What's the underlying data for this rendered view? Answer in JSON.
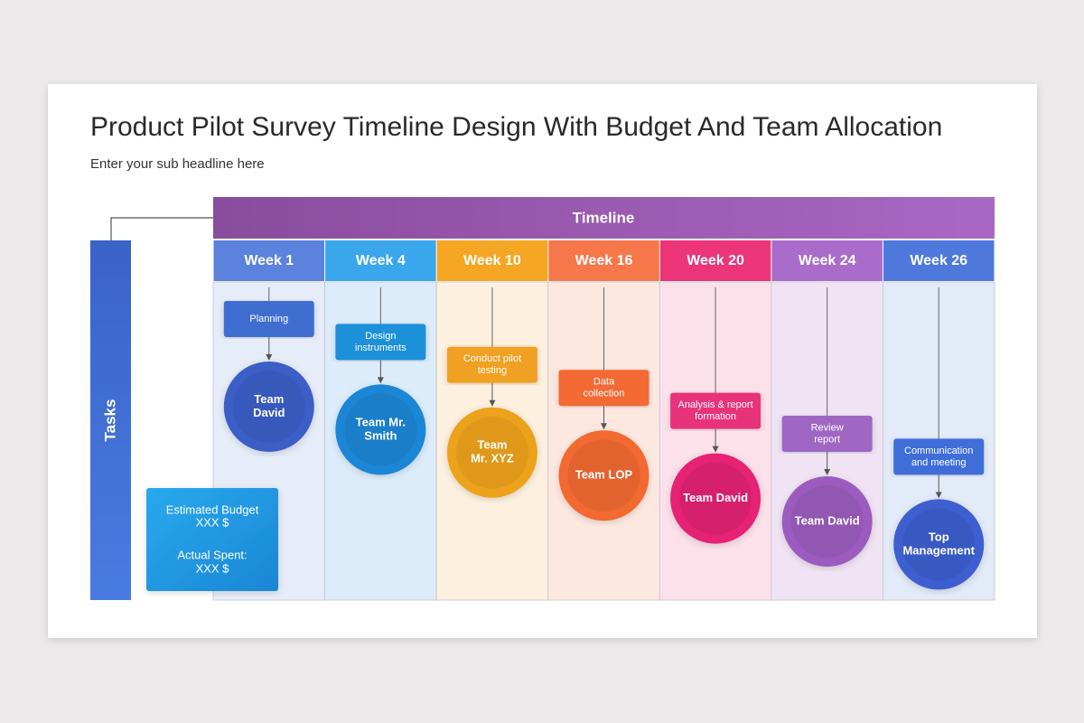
{
  "header": {
    "title": "Product Pilot Survey Timeline Design With Budget And Team Allocation",
    "subtitle": "Enter your sub headline here"
  },
  "timeline_label": "Timeline",
  "tasks_label": "Tasks",
  "budget": {
    "lines": [
      "Estimated Budget",
      "XXX $",
      "Actual Spent:",
      "XXX $"
    ]
  },
  "columns": [
    {
      "week": "Week 1",
      "task": [
        "Planning"
      ],
      "team": [
        "Team",
        "David"
      ]
    },
    {
      "week": "Week 4",
      "task": [
        "Design",
        "instruments"
      ],
      "team": [
        "Team Mr.",
        "Smith"
      ]
    },
    {
      "week": "Week 10",
      "task": [
        "Conduct pilot",
        "testing"
      ],
      "team": [
        "Team",
        "Mr. XYZ"
      ]
    },
    {
      "week": "Week 16",
      "task": [
        "Data",
        "collection"
      ],
      "team": [
        "Team LOP"
      ]
    },
    {
      "week": "Week 20",
      "task": [
        "Analysis & report",
        "formation"
      ],
      "team": [
        "Team David"
      ]
    },
    {
      "week": "Week 24",
      "task": [
        "Review",
        "report"
      ],
      "team": [
        "Team David"
      ]
    },
    {
      "week": "Week 26",
      "task": [
        "Communication",
        "and meeting"
      ],
      "team": [
        "Top",
        "Management"
      ]
    }
  ]
}
